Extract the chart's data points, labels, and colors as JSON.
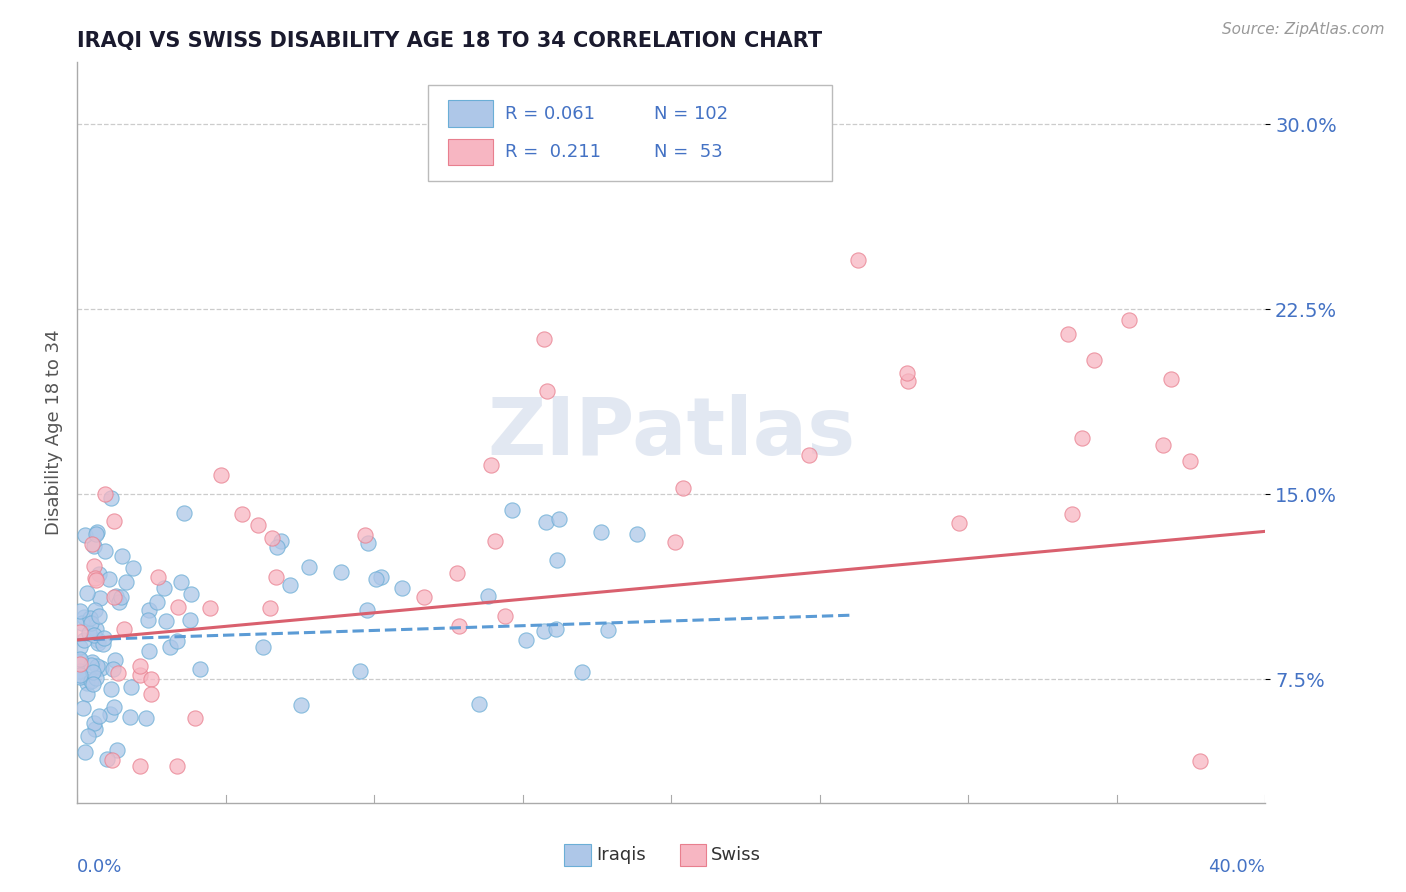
{
  "title": "IRAQI VS SWISS DISABILITY AGE 18 TO 34 CORRELATION CHART",
  "source": "Source: ZipAtlas.com",
  "ylabel": "Disability Age 18 to 34",
  "legend_iraqis": "Iraqis",
  "legend_swiss": "Swiss",
  "legend_r_iraqis": "R = 0.061",
  "legend_n_iraqis": "N = 102",
  "legend_r_swiss": "R =  0.211",
  "legend_n_swiss": "N =  53",
  "x_min": 0.0,
  "x_max": 0.4,
  "y_min": 0.025,
  "y_max": 0.325,
  "yticks": [
    0.075,
    0.15,
    0.225,
    0.3
  ],
  "ytick_labels": [
    "7.5%",
    "15.0%",
    "22.5%",
    "30.0%"
  ],
  "iraqis_color": "#aec7e8",
  "swiss_color": "#f7b6c2",
  "iraqis_edge_color": "#6baed6",
  "swiss_edge_color": "#e87f8e",
  "iraqis_line_color": "#5b9bd5",
  "swiss_line_color": "#d9606e",
  "title_color": "#1a1a2e",
  "axis_label_color": "#4472c4",
  "background_color": "#ffffff",
  "watermark_color": "#d0daea",
  "iraqis_trend_x": [
    0.0,
    0.26
  ],
  "iraqis_trend_y": [
    0.091,
    0.101
  ],
  "swiss_trend_x": [
    0.0,
    0.4
  ],
  "swiss_trend_y": [
    0.091,
    0.135
  ]
}
